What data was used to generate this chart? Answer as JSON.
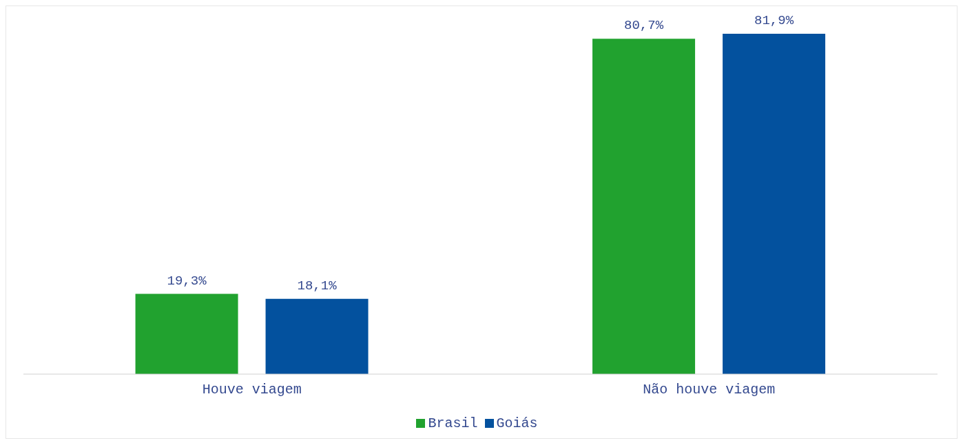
{
  "chart_data": {
    "type": "bar",
    "categories": [
      "Houve viagem",
      "Não houve viagem"
    ],
    "series": [
      {
        "name": "Brasil",
        "color": "#21a22f",
        "values": [
          19.3,
          80.7
        ],
        "value_labels": [
          "19,3%",
          "80,7%"
        ]
      },
      {
        "name": "Goiás",
        "color": "#03519e",
        "values": [
          18.1,
          81.9
        ],
        "value_labels": [
          "18,1%",
          "81,9%"
        ]
      }
    ],
    "grid": false,
    "legend": "bottom"
  }
}
